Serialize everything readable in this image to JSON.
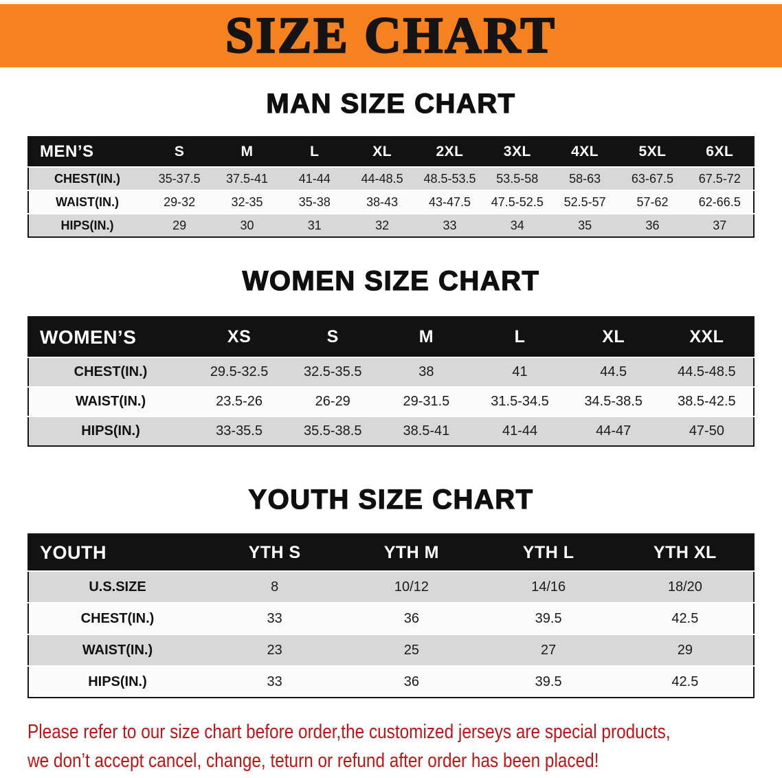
{
  "banner": {
    "title": "SIZE CHART"
  },
  "sections": {
    "men": {
      "heading": "MAN SIZE CHART",
      "table": {
        "header": [
          "MEN’S",
          "S",
          "M",
          "L",
          "XL",
          "2XL",
          "3XL",
          "4XL",
          "5XL",
          "6XL"
        ],
        "rows": [
          [
            "CHEST(IN.)",
            "35-37.5",
            "37.5-41",
            "41-44",
            "44-48.5",
            "48.5-53.5",
            "53.5-58",
            "58-63",
            "63-67.5",
            "67.5-72"
          ],
          [
            "WAIST(IN.)",
            "29-32",
            "32-35",
            "35-38",
            "38-43",
            "43-47.5",
            "47.5-52.5",
            "52.5-57",
            "57-62",
            "62-66.5"
          ],
          [
            "HIPS(IN.)",
            "29",
            "30",
            "31",
            "32",
            "33",
            "34",
            "35",
            "36",
            "37"
          ]
        ]
      }
    },
    "women": {
      "heading": "WOMEN SIZE CHART",
      "table": {
        "header": [
          "WOMEN’S",
          "XS",
          "S",
          "M",
          "L",
          "XL",
          "XXL"
        ],
        "rows": [
          [
            "CHEST(IN.)",
            "29.5-32.5",
            "32.5-35.5",
            "38",
            "41",
            "44.5",
            "44.5-48.5"
          ],
          [
            "WAIST(IN.)",
            "23.5-26",
            "26-29",
            "29-31.5",
            "31.5-34.5",
            "34.5-38.5",
            "38.5-42.5"
          ],
          [
            "HIPS(IN.)",
            "33-35.5",
            "35.5-38.5",
            "38.5-41",
            "41-44",
            "44-47",
            "47-50"
          ]
        ]
      }
    },
    "youth": {
      "heading": "YOUTH SIZE CHART",
      "table": {
        "header": [
          "YOUTH",
          "YTH S",
          "YTH M",
          "YTH L",
          "YTH XL"
        ],
        "rows": [
          [
            "U.S.SIZE",
            "8",
            "10/12",
            "14/16",
            "18/20"
          ],
          [
            "CHEST(IN.)",
            "33",
            "36",
            "39.5",
            "42.5"
          ],
          [
            "WAIST(IN.)",
            "23",
            "25",
            "27",
            "29"
          ],
          [
            "HIPS(IN.)",
            "33",
            "36",
            "39.5",
            "42.5"
          ]
        ]
      }
    }
  },
  "footer": {
    "line1": "Please refer to our size chart before order,the customized jerseys are special products,",
    "line2": "we don’t accept cancel, change, teturn or refund after order has been placed!"
  },
  "colors": {
    "banner_orange": "#f5821f",
    "banner_text": "#141414",
    "table_header_black": "#121212",
    "row_gray": "#d8d8d8",
    "row_white": "#fbfbfb",
    "disclaimer_red": "#c01414"
  }
}
